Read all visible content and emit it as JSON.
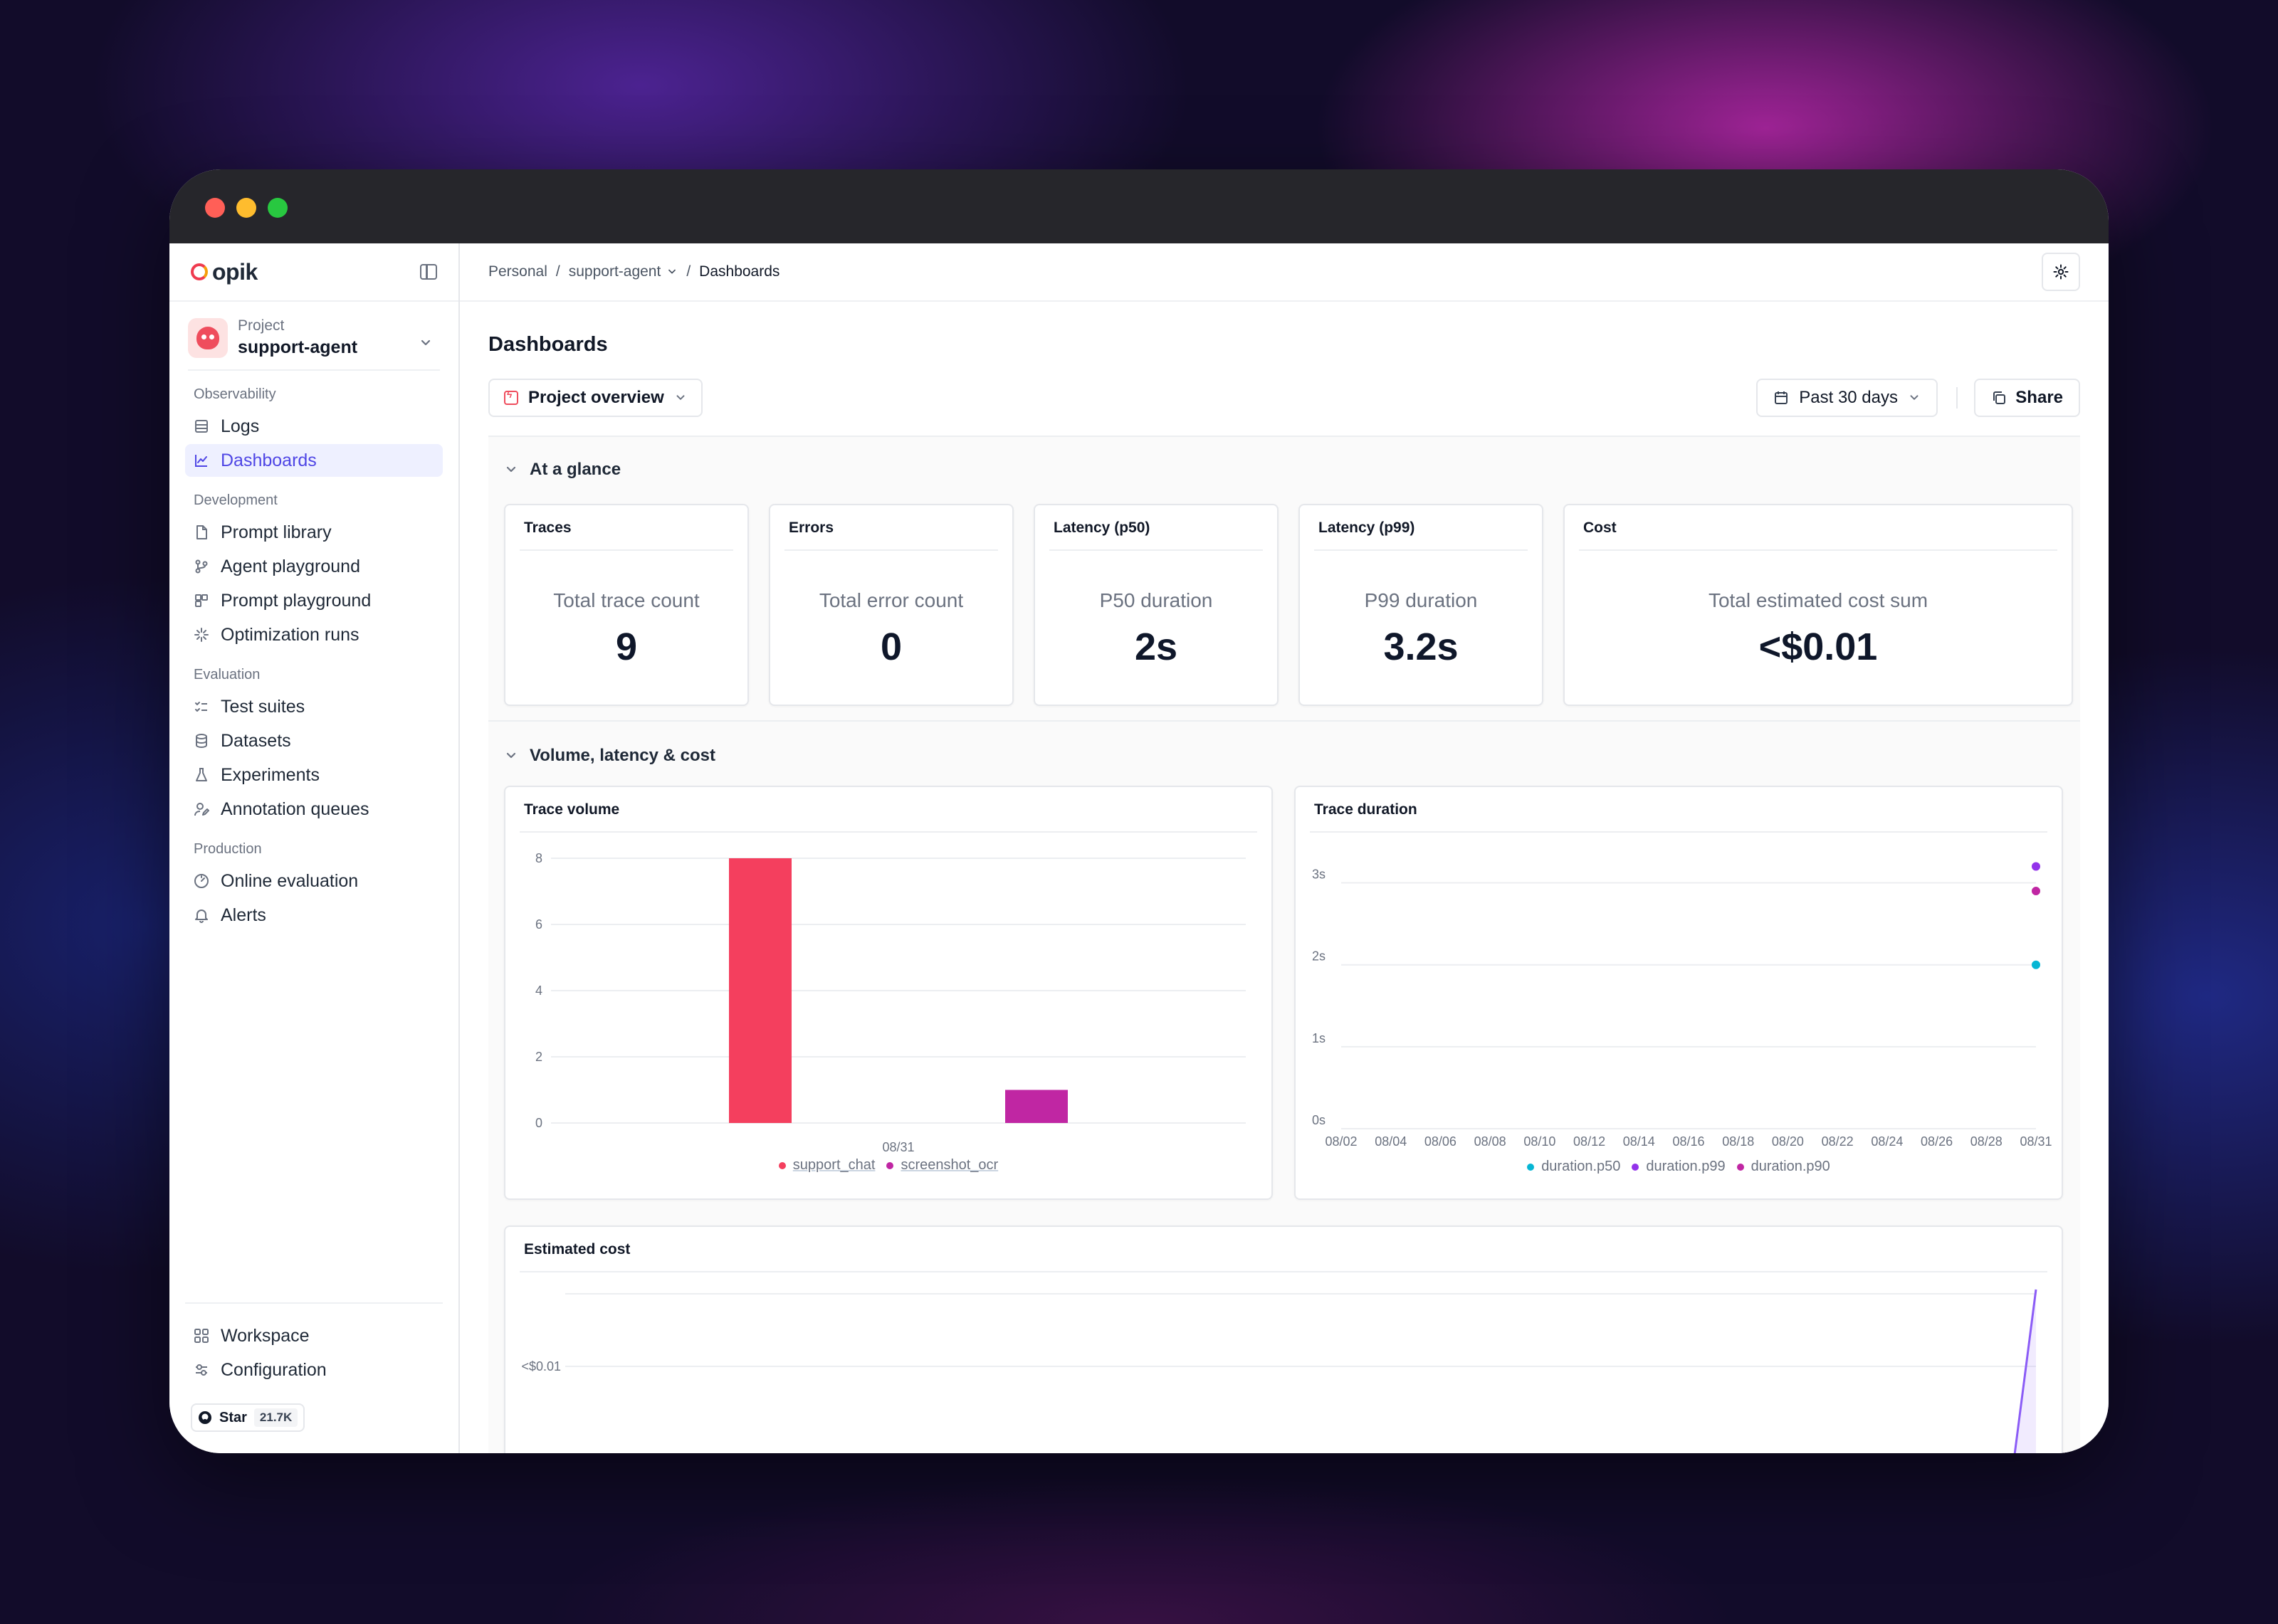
{
  "sidebar": {
    "logo_text": "opik",
    "project": {
      "label": "Project",
      "name": "support-agent"
    },
    "groups": [
      {
        "heading": "Observability",
        "items": [
          {
            "label": "Logs",
            "icon": "logs-icon"
          },
          {
            "label": "Dashboards",
            "icon": "chart-icon",
            "active": true
          }
        ]
      },
      {
        "heading": "Development",
        "items": [
          {
            "label": "Prompt library",
            "icon": "document-icon"
          },
          {
            "label": "Agent playground",
            "icon": "branch-icon"
          },
          {
            "label": "Prompt playground",
            "icon": "blocks-icon"
          },
          {
            "label": "Optimization runs",
            "icon": "sparkle-icon"
          }
        ]
      },
      {
        "heading": "Evaluation",
        "items": [
          {
            "label": "Test suites",
            "icon": "checklist-icon"
          },
          {
            "label": "Datasets",
            "icon": "database-icon"
          },
          {
            "label": "Experiments",
            "icon": "flask-icon"
          },
          {
            "label": "Annotation queues",
            "icon": "user-edit-icon"
          }
        ]
      },
      {
        "heading": "Production",
        "items": [
          {
            "label": "Online evaluation",
            "icon": "gauge-icon"
          },
          {
            "label": "Alerts",
            "icon": "bell-icon"
          }
        ]
      }
    ],
    "bottom": [
      {
        "label": "Workspace",
        "icon": "grid-icon"
      },
      {
        "label": "Configuration",
        "icon": "sliders-icon"
      }
    ],
    "star": {
      "label": "Star",
      "count": "21.7K"
    }
  },
  "topbar": {
    "crumbs": [
      "Personal",
      "support-agent",
      "Dashboards"
    ]
  },
  "page": {
    "title": "Dashboards",
    "dashboard_select": "Project overview",
    "date_range": "Past 30 days",
    "share_label": "Share"
  },
  "sections": {
    "glance": "At a glance",
    "volume": "Volume, latency & cost"
  },
  "stats": [
    {
      "title": "Traces",
      "label": "Total trace count",
      "value": "9"
    },
    {
      "title": "Errors",
      "label": "Total error count",
      "value": "0"
    },
    {
      "title": "Latency (p50)",
      "label": "P50 duration",
      "value": "2s"
    },
    {
      "title": "Latency (p99)",
      "label": "P99 duration",
      "value": "3.2s"
    },
    {
      "title": "Cost",
      "label": "Total estimated cost sum",
      "value": "<$0.01"
    }
  ],
  "colors": {
    "support_chat": "#f43f5e",
    "screenshot_ocr": "#c026a3",
    "p50": "#06b6d4",
    "p99": "#9333ea",
    "p90": "#c026a3",
    "cost_line": "#8b5cf6"
  },
  "chart_data": [
    {
      "type": "bar",
      "title": "Trace volume",
      "categories": [
        "08/31"
      ],
      "yticks": [
        "0",
        "2",
        "4",
        "6",
        "8"
      ],
      "ylim": [
        0,
        8
      ],
      "series": [
        {
          "name": "support_chat",
          "values": [
            8
          ]
        },
        {
          "name": "screenshot_ocr",
          "values": [
            1
          ]
        }
      ],
      "legend": "bottom"
    },
    {
      "type": "scatter",
      "title": "Trace duration",
      "xticks": [
        "08/02",
        "08/04",
        "08/06",
        "08/08",
        "08/10",
        "08/12",
        "08/14",
        "08/16",
        "08/18",
        "08/20",
        "08/22",
        "08/24",
        "08/26",
        "08/28",
        "08/31"
      ],
      "yticks": [
        "0s",
        "1s",
        "2s",
        "3s"
      ],
      "ylim": [
        0,
        3.3
      ],
      "series": [
        {
          "name": "duration.p50",
          "x": [
            "08/31"
          ],
          "values": [
            2.0
          ]
        },
        {
          "name": "duration.p99",
          "x": [
            "08/31"
          ],
          "values": [
            3.2
          ]
        },
        {
          "name": "duration.p90",
          "x": [
            "08/31"
          ],
          "values": [
            2.9
          ]
        }
      ],
      "legend": "bottom"
    },
    {
      "type": "area",
      "title": "Estimated cost",
      "yticks": [
        "<$0.01"
      ],
      "series": [
        {
          "values": [
            0,
            0.01
          ]
        }
      ]
    }
  ]
}
